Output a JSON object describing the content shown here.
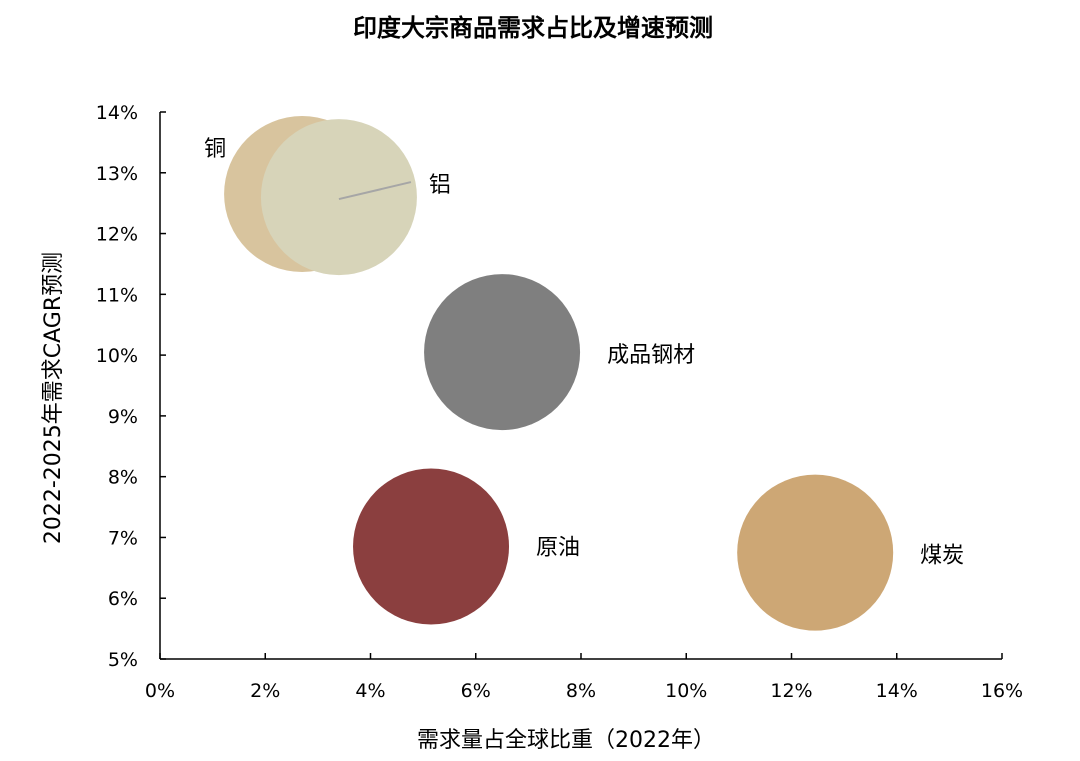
{
  "chart_data": {
    "type": "scatter",
    "title": "印度大宗商品需求占比及增速预测",
    "xlabel": "需求量占全球比重（2022年）",
    "ylabel": "2022-2025年需求CAGR预测",
    "xlim": [
      0,
      16
    ],
    "ylim": [
      5,
      14
    ],
    "x_ticks": [
      "0%",
      "2%",
      "4%",
      "6%",
      "8%",
      "10%",
      "12%",
      "14%",
      "16%"
    ],
    "y_ticks": [
      "5%",
      "6%",
      "7%",
      "8%",
      "9%",
      "10%",
      "11%",
      "12%",
      "13%",
      "14%"
    ],
    "grid": false,
    "series": [
      {
        "name": "铜",
        "x": 2.7,
        "y": 12.65,
        "color": "#d8c49e"
      },
      {
        "name": "铝",
        "x": 3.4,
        "y": 12.6,
        "color": "#d7d4b9"
      },
      {
        "name": "成品钢材",
        "x": 6.5,
        "y": 10.05,
        "color": "#7f7f7f"
      },
      {
        "name": "原油",
        "x": 5.15,
        "y": 6.85,
        "color": "#8b3f3f"
      },
      {
        "name": "煤炭",
        "x": 12.45,
        "y": 6.75,
        "color": "#cda775"
      }
    ]
  }
}
